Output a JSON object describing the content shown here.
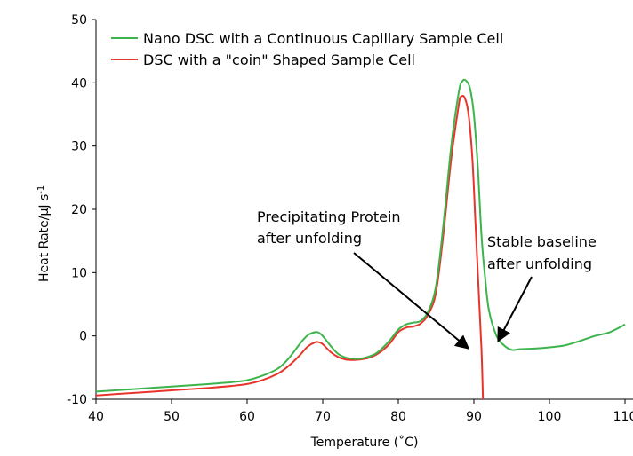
{
  "chart_data": {
    "type": "line",
    "xlabel": "Temperature (˚C)",
    "ylabel": "Heat Rate/µJ s",
    "ylabel_superscript": "-1",
    "xlim": [
      40,
      110
    ],
    "ylim": [
      -10,
      50
    ],
    "xticks": [
      "40",
      "50",
      "60",
      "70",
      "80",
      "90",
      "100",
      "110"
    ],
    "yticks": [
      "50",
      "40",
      "30",
      "20",
      "10",
      "0",
      "-10"
    ],
    "grid": false,
    "legend_position": "top",
    "series": [
      {
        "name": "Nano DSC with a Continuous Capillary Sample Cell",
        "color": "#3cb44b",
        "x": [
          40,
          45,
          50,
          55,
          58,
          60,
          62,
          64,
          65,
          66,
          67,
          68,
          69,
          69.5,
          70,
          71,
          72,
          73,
          74,
          75,
          76,
          77,
          78,
          79,
          80,
          81,
          82,
          83,
          84,
          85,
          86,
          87,
          88,
          88.5,
          89,
          89.5,
          90,
          90.5,
          91,
          91.5,
          92,
          93,
          94,
          95,
          96,
          98,
          100,
          102,
          104,
          106,
          108,
          110
        ],
        "y": [
          -8.8,
          -8.4,
          -8.0,
          -7.6,
          -7.3,
          -7.0,
          -6.3,
          -5.2,
          -4.2,
          -2.8,
          -1.2,
          0.1,
          0.6,
          0.5,
          0.0,
          -1.5,
          -2.8,
          -3.4,
          -3.6,
          -3.6,
          -3.3,
          -2.8,
          -1.8,
          -0.5,
          1.0,
          1.8,
          2.1,
          2.4,
          4.0,
          8.0,
          18.0,
          30.0,
          38.5,
          40.3,
          40.3,
          39.0,
          35.0,
          27.0,
          16.0,
          9.0,
          4.0,
          0.0,
          -1.5,
          -2.2,
          -2.1,
          -2.0,
          -1.8,
          -1.5,
          -0.8,
          0.0,
          0.6,
          1.8
        ]
      },
      {
        "name": "DSC with a \"coin\" Shaped Sample Cell",
        "color": "#e8342a",
        "x": [
          40,
          45,
          50,
          55,
          58,
          60,
          62,
          64,
          65,
          66,
          67,
          68,
          69,
          69.5,
          70,
          71,
          72,
          73,
          74,
          75,
          76,
          77,
          78,
          79,
          80,
          81,
          82,
          83,
          84,
          85,
          86,
          87,
          88,
          88.3,
          88.8,
          89.3,
          89.8,
          90.2,
          90.6,
          91.0,
          91.2
        ],
        "y": [
          -9.4,
          -9.0,
          -8.6,
          -8.2,
          -7.9,
          -7.6,
          -7.0,
          -6.0,
          -5.2,
          -4.2,
          -3.0,
          -1.7,
          -1.0,
          -1.0,
          -1.3,
          -2.5,
          -3.3,
          -3.7,
          -3.8,
          -3.7,
          -3.5,
          -3.0,
          -2.2,
          -1.0,
          0.6,
          1.3,
          1.5,
          2.0,
          3.5,
          7.0,
          16.5,
          28.0,
          36.5,
          37.8,
          37.6,
          35.0,
          28.0,
          18.0,
          8.0,
          -2.0,
          -10.0
        ]
      }
    ],
    "annotations": [
      {
        "lines": [
          "Precipitating Protein",
          "after unfolding"
        ],
        "target": [
          89.3,
          -2.0
        ]
      },
      {
        "lines": [
          "Stable baseline",
          "after unfolding"
        ],
        "target": [
          93.2,
          -0.8
        ]
      }
    ]
  }
}
